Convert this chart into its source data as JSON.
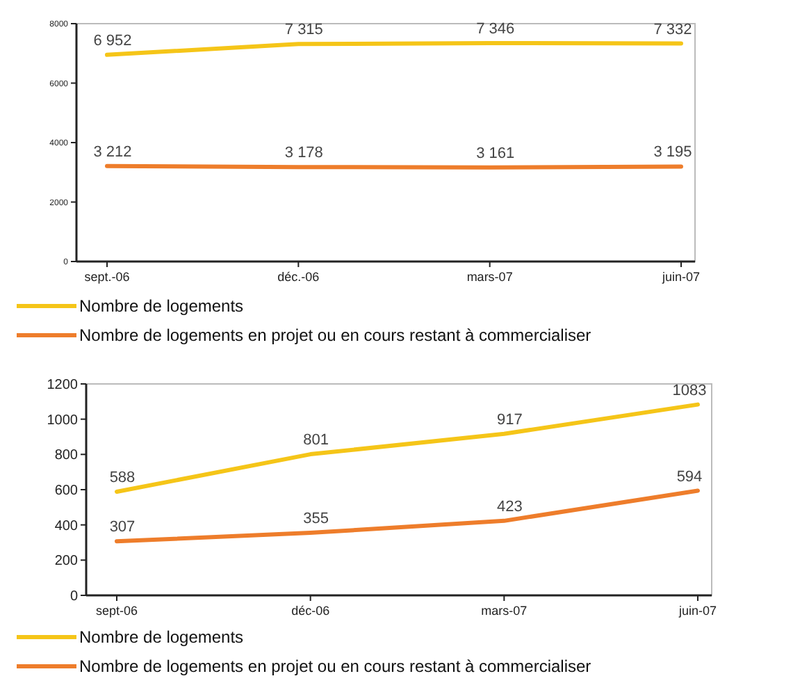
{
  "chart_data": [
    {
      "type": "line",
      "categories": [
        "sept.-06",
        "déc.-06",
        "mars-07",
        "juin-07"
      ],
      "ylim": [
        0,
        8000
      ],
      "yticks": [
        0,
        2000,
        4000,
        6000,
        8000
      ],
      "legend": "bottom",
      "series": [
        {
          "name": "Nombre de logements",
          "color": "#f5c518",
          "values": [
            6952,
            7315,
            7346,
            7332
          ],
          "value_labels": [
            "6 952",
            "7 315",
            "7 346",
            "7 332"
          ]
        },
        {
          "name": "Nombre de logements en projet ou en cours restant à commercialiser",
          "color": "#ee7d2b",
          "values": [
            3212,
            3178,
            3161,
            3195
          ],
          "value_labels": [
            "3 212",
            "3 178",
            "3 161",
            "3 195"
          ]
        }
      ]
    },
    {
      "type": "line",
      "categories": [
        "sept-06",
        "déc-06",
        "mars-07",
        "juin-07"
      ],
      "ylim": [
        0,
        1200
      ],
      "yticks": [
        0,
        200,
        400,
        600,
        800,
        1000,
        1200
      ],
      "legend": "bottom",
      "data_labels": true,
      "series": [
        {
          "name": "Nombre de logements",
          "color": "#f5c518",
          "values": [
            588,
            801,
            917,
            1083
          ]
        },
        {
          "name": "Nombre de logements en projet ou en cours restant à commercialiser",
          "color": "#ee7d2b",
          "values": [
            307,
            355,
            423,
            594
          ]
        }
      ]
    }
  ]
}
